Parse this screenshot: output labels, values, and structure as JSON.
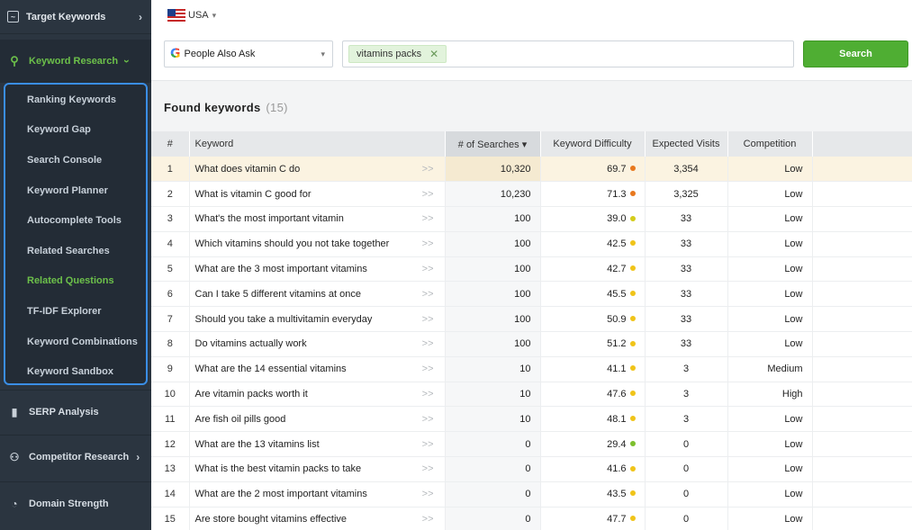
{
  "sidebar": {
    "top_item": "Target Keywords",
    "keyword_research": "Keyword Research",
    "sub_items": [
      {
        "label": "Ranking Keywords",
        "active": false
      },
      {
        "label": "Keyword Gap",
        "active": false
      },
      {
        "label": "Search Console",
        "active": false
      },
      {
        "label": "Keyword Planner",
        "active": false
      },
      {
        "label": "Autocomplete Tools",
        "active": false
      },
      {
        "label": "Related Searches",
        "active": false
      },
      {
        "label": "Related Questions",
        "active": true
      },
      {
        "label": "TF-IDF Explorer",
        "active": false
      },
      {
        "label": "Keyword Combinations",
        "active": false
      },
      {
        "label": "Keyword Sandbox",
        "active": false
      }
    ],
    "serp_analysis": "SERP Analysis",
    "competitor_research": "Competitor Research",
    "domain_strength": "Domain Strength"
  },
  "search": {
    "country": "USA",
    "source": "People Also Ask",
    "tag": "vitamins packs",
    "button": "Search"
  },
  "results": {
    "title": "Found keywords",
    "count": "(15)"
  },
  "table": {
    "headers": {
      "num": "#",
      "keyword": "Keyword",
      "searches": "# of Searches ▾",
      "difficulty": "Keyword Difficulty",
      "visits": "Expected Visits",
      "competition": "Competition"
    },
    "rows": [
      {
        "n": "1",
        "keyword": "What does vitamin C do",
        "searches": "10,320",
        "difficulty": "69.7",
        "color": "#e8781e",
        "visits": "3,354",
        "competition": "Low",
        "highlight": true
      },
      {
        "n": "2",
        "keyword": "What is vitamin C good for",
        "searches": "10,230",
        "difficulty": "71.3",
        "color": "#e8781e",
        "visits": "3,325",
        "competition": "Low"
      },
      {
        "n": "3",
        "keyword": "What's the most important vitamin",
        "searches": "100",
        "difficulty": "39.0",
        "color": "#d4cc1a",
        "visits": "33",
        "competition": "Low"
      },
      {
        "n": "4",
        "keyword": "Which vitamins should you not take together",
        "searches": "100",
        "difficulty": "42.5",
        "color": "#f0c419",
        "visits": "33",
        "competition": "Low"
      },
      {
        "n": "5",
        "keyword": "What are the 3 most important vitamins",
        "searches": "100",
        "difficulty": "42.7",
        "color": "#f0c419",
        "visits": "33",
        "competition": "Low"
      },
      {
        "n": "6",
        "keyword": "Can I take 5 different vitamins at once",
        "searches": "100",
        "difficulty": "45.5",
        "color": "#f0c419",
        "visits": "33",
        "competition": "Low"
      },
      {
        "n": "7",
        "keyword": "Should you take a multivitamin everyday",
        "searches": "100",
        "difficulty": "50.9",
        "color": "#f0c419",
        "visits": "33",
        "competition": "Low"
      },
      {
        "n": "8",
        "keyword": "Do vitamins actually work",
        "searches": "100",
        "difficulty": "51.2",
        "color": "#f0c419",
        "visits": "33",
        "competition": "Low"
      },
      {
        "n": "9",
        "keyword": "What are the 14 essential vitamins",
        "searches": "10",
        "difficulty": "41.1",
        "color": "#f0c419",
        "visits": "3",
        "competition": "Medium"
      },
      {
        "n": "10",
        "keyword": "Are vitamin packs worth it",
        "searches": "10",
        "difficulty": "47.6",
        "color": "#f0c419",
        "visits": "3",
        "competition": "High"
      },
      {
        "n": "11",
        "keyword": "Are fish oil pills good",
        "searches": "10",
        "difficulty": "48.1",
        "color": "#f0c419",
        "visits": "3",
        "competition": "Low"
      },
      {
        "n": "12",
        "keyword": "What are the 13 vitamins list",
        "searches": "0",
        "difficulty": "29.4",
        "color": "#7cbf2e",
        "visits": "0",
        "competition": "Low"
      },
      {
        "n": "13",
        "keyword": "What is the best vitamin packs to take",
        "searches": "0",
        "difficulty": "41.6",
        "color": "#f0c419",
        "visits": "0",
        "competition": "Low"
      },
      {
        "n": "14",
        "keyword": "What are the 2 most important vitamins",
        "searches": "0",
        "difficulty": "43.5",
        "color": "#f0c419",
        "visits": "0",
        "competition": "Low"
      },
      {
        "n": "15",
        "keyword": "Are store bought vitamins effective",
        "searches": "0",
        "difficulty": "47.7",
        "color": "#f0c419",
        "visits": "0",
        "competition": "Low"
      }
    ]
  },
  "icons": {
    "expand": ">>",
    "chevron": "›"
  }
}
